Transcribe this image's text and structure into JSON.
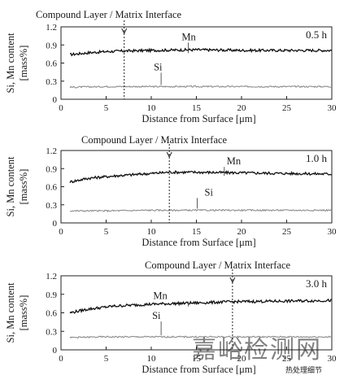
{
  "chart_data": [
    {
      "type": "line",
      "corner_label": "0.5 h",
      "annotation": "Compound Layer / Matrix Interface",
      "interface_x": 7,
      "xlabel": "Distance from Surface [μm]",
      "ylabel_line1": "Si, Mn content",
      "ylabel_line2": "[mass%]",
      "xlim": [
        0,
        30
      ],
      "ylim": [
        0,
        1.2
      ],
      "xticks": [
        0,
        5,
        10,
        15,
        20,
        25,
        30
      ],
      "yticks": [
        "0",
        "0.3",
        "0.6",
        "0.9",
        "1.2"
      ],
      "series": [
        {
          "name": "Mn",
          "x": [
            1,
            3,
            5,
            7,
            10,
            15,
            20,
            25,
            30
          ],
          "values": [
            0.74,
            0.77,
            0.79,
            0.8,
            0.81,
            0.82,
            0.81,
            0.81,
            0.81
          ]
        },
        {
          "name": "Si",
          "x": [
            1,
            5,
            10,
            15,
            20,
            25,
            30
          ],
          "values": [
            0.2,
            0.21,
            0.21,
            0.21,
            0.21,
            0.21,
            0.21
          ]
        }
      ]
    },
    {
      "type": "line",
      "corner_label": "1.0 h",
      "annotation": "Compound Layer / Matrix Interface",
      "interface_x": 12,
      "xlabel": "Distance from Surface [μm]",
      "ylabel_line1": "Si, Mn content",
      "ylabel_line2": "[mass%]",
      "xlim": [
        0,
        30
      ],
      "ylim": [
        0,
        1.2
      ],
      "xticks": [
        0,
        5,
        10,
        15,
        20,
        25,
        30
      ],
      "yticks": [
        "0",
        "0.3",
        "0.6",
        "0.9",
        "1.2"
      ],
      "series": [
        {
          "name": "Mn",
          "x": [
            1,
            3,
            6,
            9,
            12,
            15,
            20,
            25,
            30
          ],
          "values": [
            0.68,
            0.74,
            0.78,
            0.81,
            0.84,
            0.84,
            0.83,
            0.82,
            0.81
          ]
        },
        {
          "name": "Si",
          "x": [
            1,
            5,
            10,
            15,
            20,
            25,
            30
          ],
          "values": [
            0.2,
            0.2,
            0.21,
            0.21,
            0.21,
            0.21,
            0.21
          ]
        }
      ]
    },
    {
      "type": "line",
      "corner_label": "3.0 h",
      "annotation": "Compound Layer / Matrix Interface",
      "interface_x": 19,
      "xlabel": "Distance from Surface [μm]",
      "ylabel_line1": "Si, Mn content",
      "ylabel_line2": "[mass%]",
      "xlim": [
        0,
        30
      ],
      "ylim": [
        0,
        1.2
      ],
      "xticks": [
        0,
        5,
        10,
        15,
        20,
        25,
        30
      ],
      "yticks": [
        "0",
        "0.3",
        "0.6",
        "0.9",
        "1.2"
      ],
      "series": [
        {
          "name": "Mn",
          "x": [
            1,
            3,
            6,
            10,
            15,
            19,
            25,
            30
          ],
          "values": [
            0.6,
            0.66,
            0.71,
            0.74,
            0.76,
            0.78,
            0.79,
            0.8
          ]
        },
        {
          "name": "Si",
          "x": [
            1,
            5,
            10,
            15,
            20,
            25,
            30
          ],
          "values": [
            0.2,
            0.21,
            0.21,
            0.21,
            0.21,
            0.21,
            0.21
          ]
        }
      ]
    }
  ],
  "watermark": "嘉峪检测网",
  "watermark_small": "热处理细节"
}
